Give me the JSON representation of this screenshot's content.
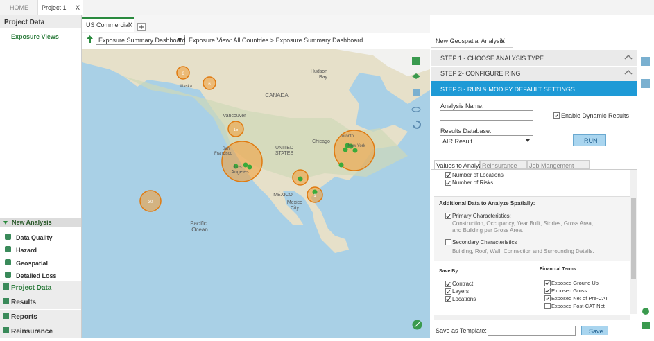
{
  "top_tabs": {
    "home": "HOME",
    "project": "Project 1",
    "close": "X"
  },
  "sidebar": {
    "title": "Project Data",
    "link": "Exposure Views",
    "new_analysis": {
      "title": "New Analysis",
      "items": [
        "Data Quality",
        "Hazard",
        "Geospatial",
        "Detailed Loss"
      ]
    },
    "nav": [
      "Project Data",
      "Results",
      "Reports",
      "Reinsurance"
    ]
  },
  "workspace": {
    "tab": "US Commercial",
    "view_select": "Exposure Summary Dashboard",
    "breadcrumb": "Exposure View: All Countries > Exposure Summary Dashboard"
  },
  "map": {
    "labels": [
      "CANADA",
      "UNITED",
      "STATES",
      "MÉXICO",
      "Pacific",
      "Ocean",
      "Hudson",
      "Bay",
      "Vancouver",
      "Chicago",
      "Toronto",
      "New York",
      "Mexico",
      "City",
      "Alaska",
      "Los",
      "Angeles",
      "San",
      "Francisco"
    ],
    "clusters": [
      "6",
      "6",
      "15",
      "30",
      "1"
    ]
  },
  "panel": {
    "tab": "New Geospatial Analysis",
    "steps": [
      "STEP 1 - CHOOSE ANALYSIS TYPE",
      "STEP 2- CONFIGURE RING",
      "STEP 3 - RUN & MODIFY DEFAULT SETTINGS"
    ],
    "analysis_name": "Analysis Name:",
    "dynamic": "Enable Dynamic Results",
    "results_db": "Results Database:",
    "results_db_value": "AIR Result",
    "run": "RUN",
    "tabs": [
      "Values to Analyze",
      "Reinsurance",
      "Job Mangement"
    ],
    "values": [
      "Number of Locations",
      "Number of Risks"
    ],
    "additional": "Additional Data to Analyze Spatially:",
    "primary": {
      "label": "Primary Characteristics:",
      "desc": [
        "Construction, Occupancy, Year Built, Stories, Gross Area,",
        "and Building per Gross Area."
      ]
    },
    "secondary": {
      "label": "Secondary Characteristics",
      "desc": "Building, Roof, Wall, Connection and Surrounding Details."
    },
    "save_by": {
      "title": "Save By:",
      "items": [
        "Contract",
        "Layers",
        "Locations"
      ]
    },
    "financial": {
      "title": "Financial Terms",
      "items": [
        "Exposed Ground Up",
        "Exposed Gross",
        "Exposed Net of Pre-CAT",
        "Exposed Post-CAT Net"
      ]
    },
    "template": "Save as Template:",
    "save": "Save"
  }
}
